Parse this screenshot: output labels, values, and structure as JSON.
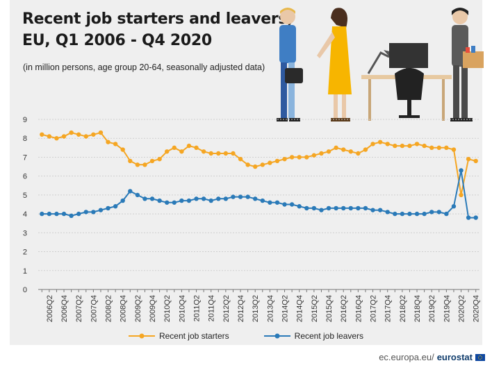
{
  "header": {
    "title_line1": "Recent job starters and leavers,",
    "title_line2": "EU, Q1 2006 - Q4 2020",
    "subtitle": "(in million persons, age group 20-64, seasonally adjusted data)"
  },
  "footer": {
    "site": "ec.europa.eu/",
    "brand": "eurostat"
  },
  "colors": {
    "starters": "#f5a623",
    "leavers": "#2a7ab8",
    "grid": "#cfcfcf"
  },
  "icons": [
    "businessman-with-briefcase-icon",
    "businesswoman-icon",
    "office-desk-icon",
    "employee-leaving-with-box-icon"
  ],
  "chart_data": {
    "type": "line",
    "title": "Recent job starters and leavers, EU, Q1 2006 - Q4 2020",
    "subtitle": "(in million persons, age group 20-64, seasonally adjusted data)",
    "xlabel": "",
    "ylabel": "",
    "ylim": [
      0,
      9
    ],
    "yticks": [
      0,
      1,
      2,
      3,
      4,
      5,
      6,
      7,
      8,
      9
    ],
    "grid": true,
    "legend_position": "bottom",
    "x_tick_labels": [
      "2006Q2",
      "2006Q4",
      "2007Q2",
      "2007Q4",
      "2008Q2",
      "2008Q4",
      "2009Q2",
      "2009Q4",
      "2010Q2",
      "2010Q4",
      "2011Q2",
      "2011Q4",
      "2012Q2",
      "2012Q4",
      "2013Q2",
      "2013Q4",
      "2014Q2",
      "2014Q4",
      "2015Q2",
      "2015Q4",
      "2016Q2",
      "2016Q4",
      "2017Q2",
      "2017Q4",
      "2018Q2",
      "2018Q4",
      "2019Q2",
      "2019Q4",
      "2020Q2",
      "2020Q4"
    ],
    "x": [
      "2006Q1",
      "2006Q2",
      "2006Q3",
      "2006Q4",
      "2007Q1",
      "2007Q2",
      "2007Q3",
      "2007Q4",
      "2008Q1",
      "2008Q2",
      "2008Q3",
      "2008Q4",
      "2009Q1",
      "2009Q2",
      "2009Q3",
      "2009Q4",
      "2010Q1",
      "2010Q2",
      "2010Q3",
      "2010Q4",
      "2011Q1",
      "2011Q2",
      "2011Q3",
      "2011Q4",
      "2012Q1",
      "2012Q2",
      "2012Q3",
      "2012Q4",
      "2013Q1",
      "2013Q2",
      "2013Q3",
      "2013Q4",
      "2014Q1",
      "2014Q2",
      "2014Q3",
      "2014Q4",
      "2015Q1",
      "2015Q2",
      "2015Q3",
      "2015Q4",
      "2016Q1",
      "2016Q2",
      "2016Q3",
      "2016Q4",
      "2017Q1",
      "2017Q2",
      "2017Q3",
      "2017Q4",
      "2018Q1",
      "2018Q2",
      "2018Q3",
      "2018Q4",
      "2019Q1",
      "2019Q2",
      "2019Q3",
      "2019Q4",
      "2020Q1",
      "2020Q2",
      "2020Q3",
      "2020Q4"
    ],
    "series": [
      {
        "name": "Recent job starters",
        "color": "#f5a623",
        "values": [
          8.2,
          8.1,
          8.0,
          8.1,
          8.3,
          8.2,
          8.1,
          8.2,
          8.3,
          7.8,
          7.7,
          7.4,
          6.8,
          6.6,
          6.6,
          6.8,
          6.9,
          7.3,
          7.5,
          7.3,
          7.6,
          7.5,
          7.3,
          7.2,
          7.2,
          7.2,
          7.2,
          6.9,
          6.6,
          6.5,
          6.6,
          6.7,
          6.8,
          6.9,
          7.0,
          7.0,
          7.0,
          7.1,
          7.2,
          7.3,
          7.5,
          7.4,
          7.3,
          7.2,
          7.4,
          7.7,
          7.8,
          7.7,
          7.6,
          7.6,
          7.6,
          7.7,
          7.6,
          7.5,
          7.5,
          7.5,
          7.4,
          5.0,
          6.9,
          6.8
        ]
      },
      {
        "name": "Recent job leavers",
        "color": "#2a7ab8",
        "values": [
          4.0,
          4.0,
          4.0,
          4.0,
          3.9,
          4.0,
          4.1,
          4.1,
          4.2,
          4.3,
          4.4,
          4.7,
          5.2,
          5.0,
          4.8,
          4.8,
          4.7,
          4.6,
          4.6,
          4.7,
          4.7,
          4.8,
          4.8,
          4.7,
          4.8,
          4.8,
          4.9,
          4.9,
          4.9,
          4.8,
          4.7,
          4.6,
          4.6,
          4.5,
          4.5,
          4.4,
          4.3,
          4.3,
          4.2,
          4.3,
          4.3,
          4.3,
          4.3,
          4.3,
          4.3,
          4.2,
          4.2,
          4.1,
          4.0,
          4.0,
          4.0,
          4.0,
          4.0,
          4.1,
          4.1,
          4.0,
          4.4,
          6.3,
          3.8,
          3.8
        ]
      }
    ]
  }
}
